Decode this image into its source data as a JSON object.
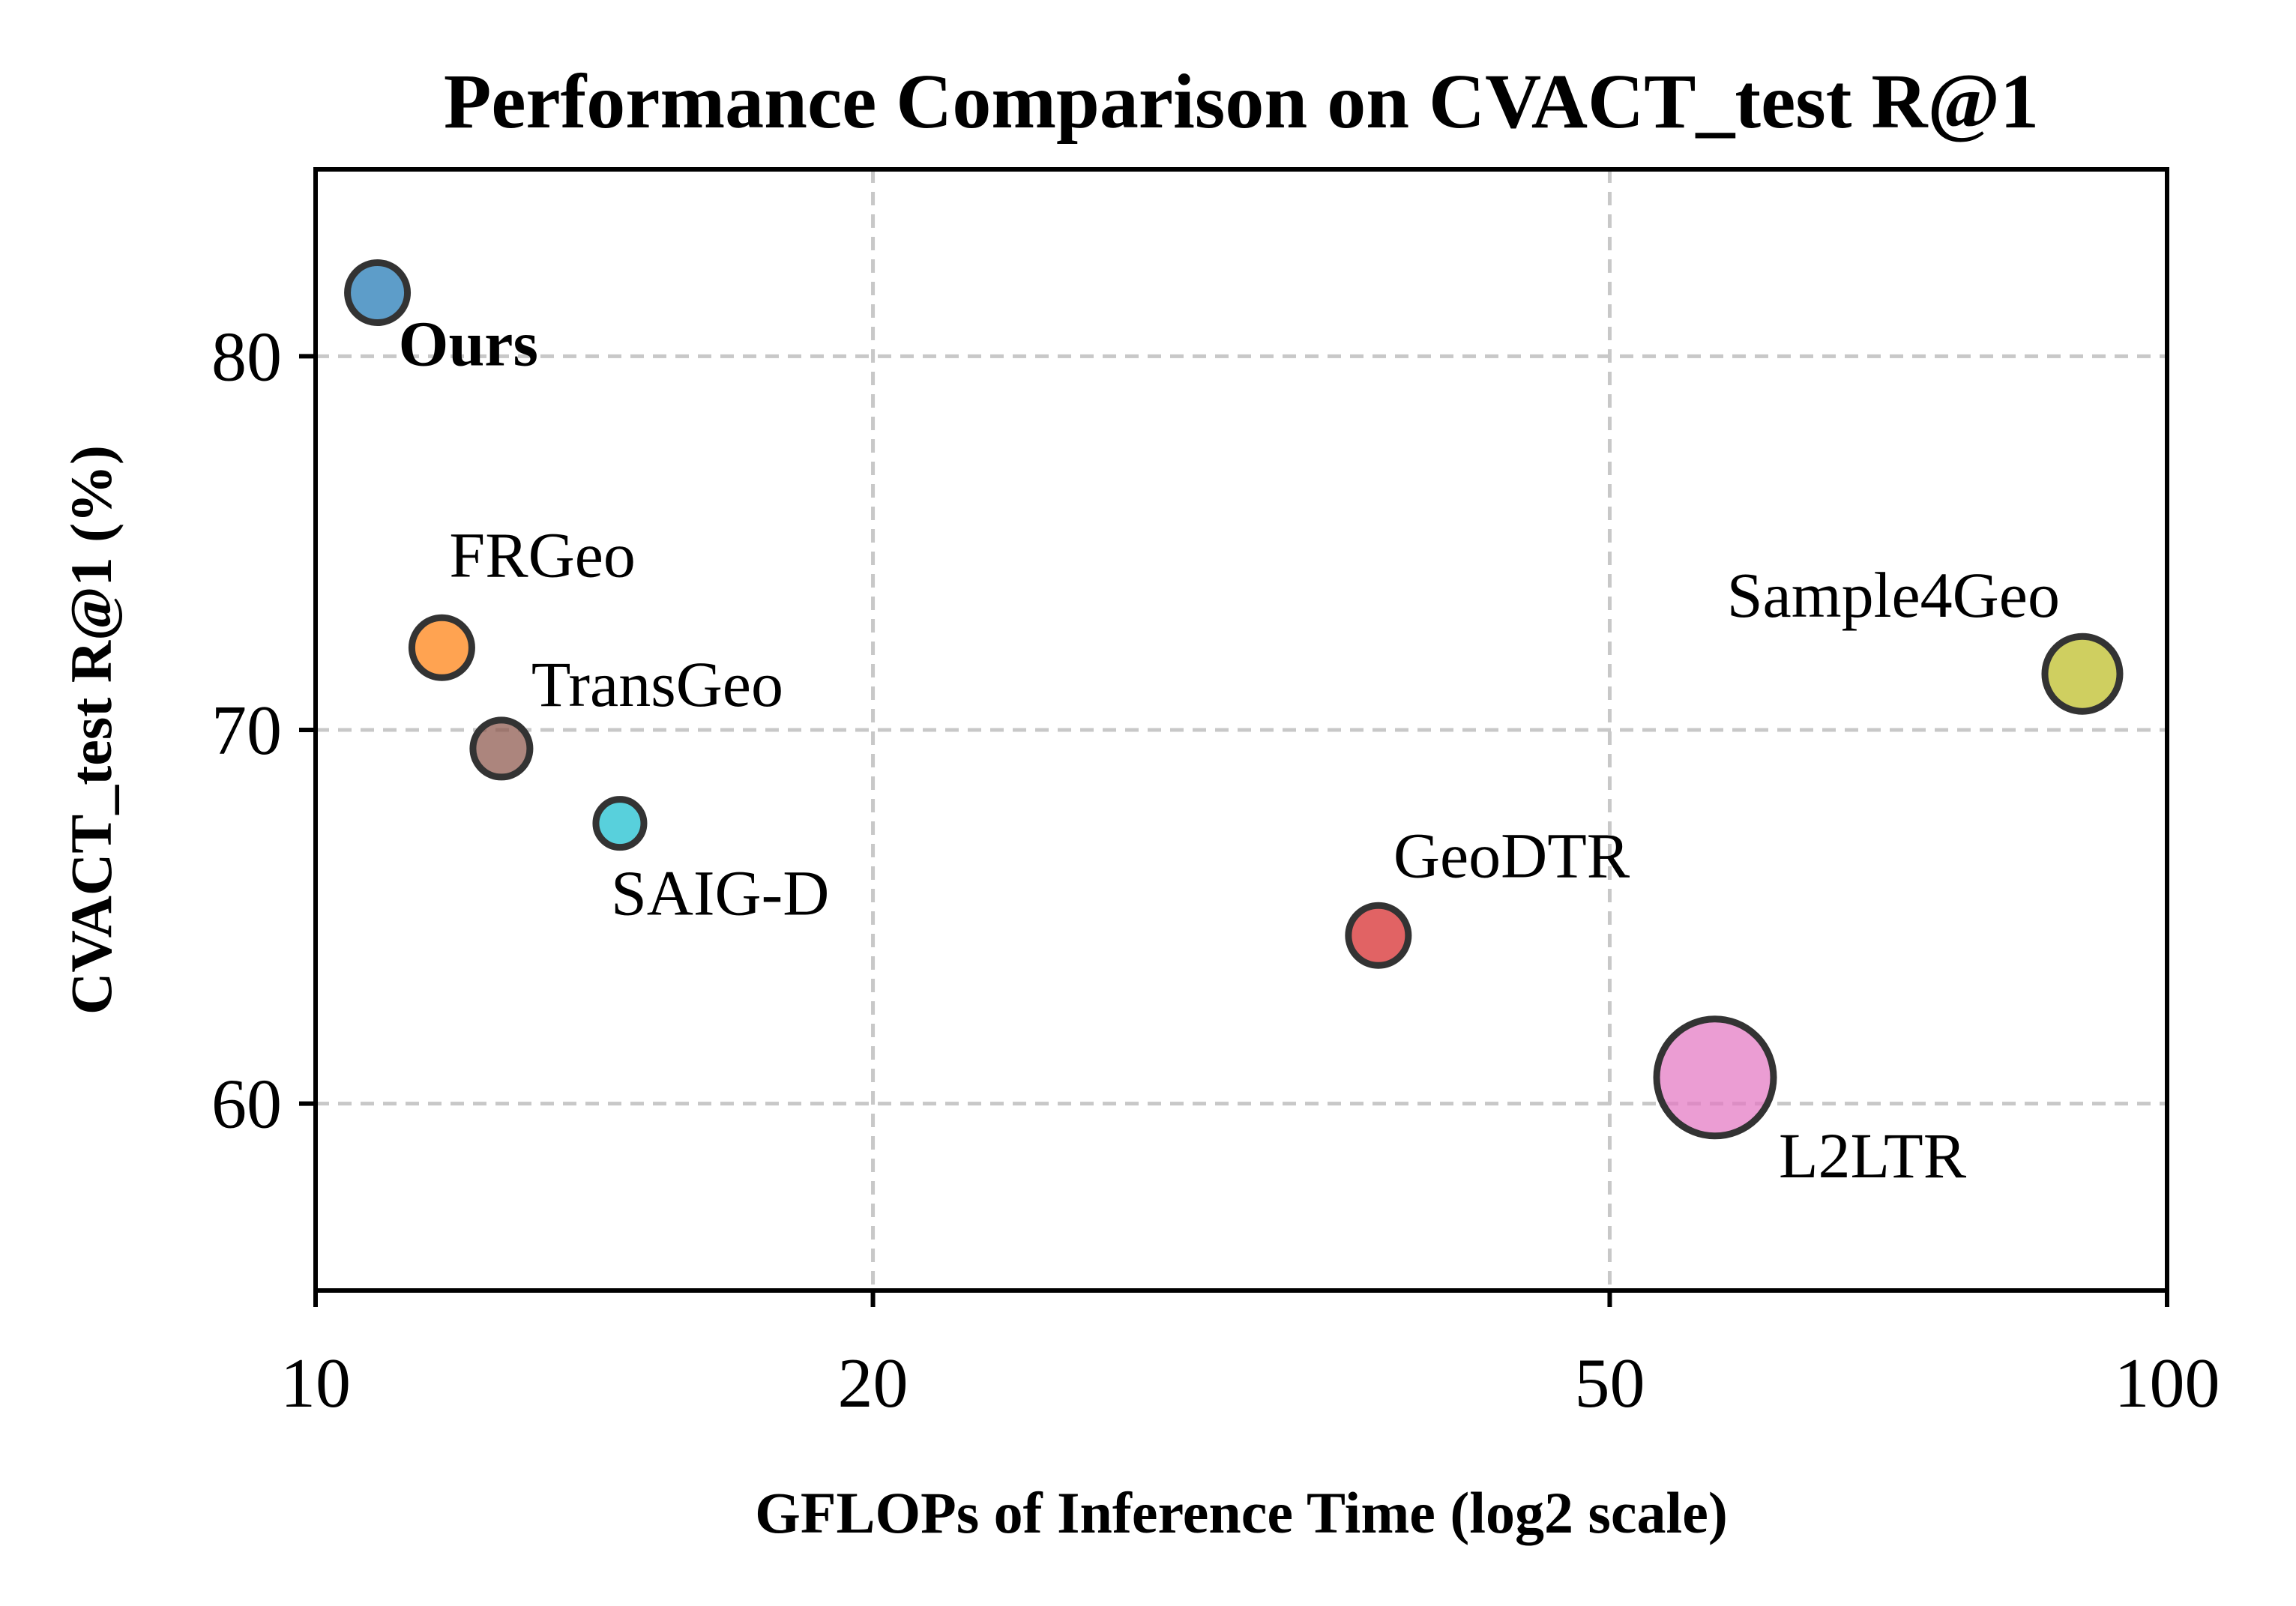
{
  "chart_data": {
    "type": "scatter",
    "title": "Performance Comparison on CVACT_test R@1",
    "xlabel": "GFLOPs of Inference Time (log2 scale)",
    "ylabel": "CVACT_test R@1 (%)",
    "x_scale": "log2",
    "xlim": [
      10,
      100
    ],
    "ylim": [
      55,
      85
    ],
    "xticks": [
      10,
      20,
      50,
      100
    ],
    "xtick_labels": [
      "10",
      "20",
      "50",
      "100"
    ],
    "yticks": [
      60,
      70,
      80
    ],
    "ytick_labels": [
      "60",
      "70",
      "80"
    ],
    "grid": true,
    "points": [
      {
        "name": "Ours",
        "x": 10.8,
        "y": 81.7,
        "size": 1.0,
        "color": "#1f77b4",
        "bold": true
      },
      {
        "name": "FRGeo",
        "x": 11.7,
        "y": 72.2,
        "size": 1.0,
        "color": "#ff7f0e",
        "bold": false
      },
      {
        "name": "TransGeo",
        "x": 12.6,
        "y": 69.5,
        "size": 0.95,
        "color": "#8c564b",
        "bold": false
      },
      {
        "name": "SAIG-D",
        "x": 14.6,
        "y": 67.5,
        "size": 0.8,
        "color": "#17becf",
        "bold": false
      },
      {
        "name": "GeoDTR",
        "x": 37.5,
        "y": 64.5,
        "size": 1.0,
        "color": "#d62728",
        "bold": false
      },
      {
        "name": "L2LTR",
        "x": 57.0,
        "y": 60.7,
        "size": 1.95,
        "color": "#e377c2",
        "bold": false
      },
      {
        "name": "Sample4Geo",
        "x": 90.0,
        "y": 71.5,
        "size": 1.25,
        "color": "#bcbd22",
        "bold": false
      }
    ]
  }
}
